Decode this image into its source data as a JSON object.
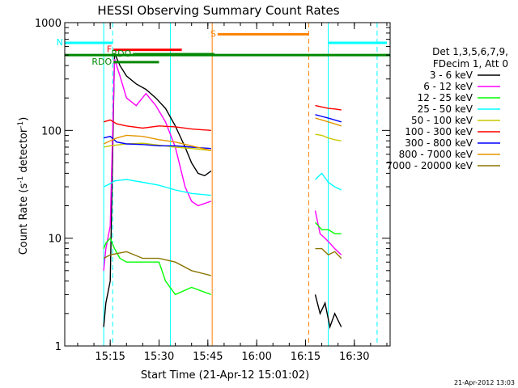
{
  "chart_data": {
    "type": "line",
    "title": "HESSI Observing Summary Count Rates",
    "xlabel": "Start Time (21-Apr-12 15:01:02)",
    "ylabel_main": "Count Rate (s",
    "ylabel_sup1": "-1",
    "ylabel_mid": " detector",
    "ylabel_sup2": "-1",
    "ylabel_end": ")",
    "ylim": [
      1,
      1000
    ],
    "yscale": "log",
    "xlim": [
      "15:01:02",
      "16:41:00"
    ],
    "x_ticks": [
      "15:15",
      "15:30",
      "15:45",
      "16:00",
      "16:15",
      "16:30"
    ],
    "y_ticks": [
      "1",
      "10",
      "100",
      "1000"
    ],
    "legend": {
      "placement": "right",
      "header1": "Det 1,3,5,6,7,9,",
      "header2": "FDecim 1, Att 0"
    },
    "series": [
      {
        "name": "3 - 6 keV",
        "color": "#000000",
        "x": [
          "15:13:00",
          "15:13:40",
          "15:15:00",
          "15:16:20",
          "15:18:00",
          "15:20:00",
          "15:23:00",
          "15:26:00",
          "15:29:00",
          "15:32:00",
          "15:35:00",
          "15:38:00",
          "15:40:00",
          "15:42:00",
          "15:44:00",
          "15:46:00",
          "16:18:00",
          "16:19:30",
          "16:21:00",
          "16:22:30",
          "16:24:00",
          "16:26:00"
        ],
        "y": [
          1.5,
          2.5,
          4,
          520,
          400,
          320,
          270,
          240,
          200,
          160,
          110,
          70,
          50,
          40,
          38,
          42,
          3,
          2,
          2.5,
          1.5,
          2,
          1.5
        ]
      },
      {
        "name": "6 - 12 keV",
        "color": "#ff00ff",
        "x": [
          "15:13:00",
          "15:13:40",
          "15:15:00",
          "15:16:20",
          "15:18:00",
          "15:20:00",
          "15:23:00",
          "15:26:00",
          "15:29:00",
          "15:32:00",
          "15:35:00",
          "15:38:00",
          "15:40:00",
          "15:42:00",
          "15:44:00",
          "15:46:00",
          "16:18:00",
          "16:19:30",
          "16:21:00",
          "16:22:30",
          "16:24:00",
          "16:26:00"
        ],
        "y": [
          5,
          8,
          13,
          460,
          320,
          200,
          170,
          220,
          170,
          120,
          70,
          30,
          22,
          20,
          21,
          22,
          18,
          11,
          10,
          9,
          8,
          7
        ]
      },
      {
        "name": "12 - 25 keV",
        "color": "#00ff00",
        "x": [
          "15:13:00",
          "15:13:40",
          "15:15:00",
          "15:16:20",
          "15:18:00",
          "15:20:00",
          "15:25:00",
          "15:30:00",
          "15:32:00",
          "15:35:00",
          "15:40:00",
          "15:46:00",
          "16:18:00",
          "16:20:00",
          "16:22:00",
          "16:24:00",
          "16:26:00"
        ],
        "y": [
          8,
          9,
          10,
          8,
          6.5,
          6,
          6,
          6,
          4,
          3,
          3.5,
          3,
          14,
          12,
          12,
          11,
          11
        ]
      },
      {
        "name": "25 - 50 keV",
        "color": "#00ffff",
        "x": [
          "15:13:00",
          "15:15:00",
          "15:16:20",
          "15:20:00",
          "15:25:00",
          "15:30:00",
          "15:35:00",
          "15:40:00",
          "15:46:00",
          "16:18:00",
          "16:20:00",
          "16:22:00",
          "16:24:00",
          "16:26:00"
        ],
        "y": [
          30,
          32,
          34,
          35,
          33,
          31,
          28,
          26,
          25,
          35,
          40,
          33,
          30,
          28
        ]
      },
      {
        "name": "50 - 100 keV",
        "color": "#c8c800",
        "x": [
          "15:13:00",
          "15:15:00",
          "15:20:00",
          "15:25:00",
          "15:30:00",
          "15:35:00",
          "15:40:00",
          "15:46:00",
          "16:18:00",
          "16:20:00",
          "16:22:00",
          "16:24:00",
          "16:26:00"
        ],
        "y": [
          70,
          72,
          75,
          76,
          73,
          70,
          68,
          65,
          92,
          90,
          85,
          82,
          80
        ]
      },
      {
        "name": "100 - 300 keV",
        "color": "#ff0000",
        "x": [
          "15:13:00",
          "15:15:00",
          "15:17:00",
          "15:20:00",
          "15:25:00",
          "15:30:00",
          "15:35:00",
          "15:40:00",
          "15:46:00",
          "16:18:00",
          "16:20:00",
          "16:22:00",
          "16:24:00",
          "16:26:00"
        ],
        "y": [
          120,
          125,
          115,
          110,
          105,
          110,
          108,
          103,
          100,
          170,
          165,
          160,
          158,
          155
        ]
      },
      {
        "name": "300 - 800 keV",
        "color": "#0000ff",
        "x": [
          "15:13:00",
          "15:15:00",
          "15:17:00",
          "15:20:00",
          "15:25:00",
          "15:30:00",
          "15:35:00",
          "15:40:00",
          "15:46:00",
          "16:18:00",
          "16:20:00",
          "16:22:00",
          "16:24:00",
          "16:26:00"
        ],
        "y": [
          85,
          88,
          78,
          75,
          74,
          72,
          72,
          70,
          68,
          140,
          135,
          130,
          125,
          120
        ]
      },
      {
        "name": "800 - 7000 keV",
        "color": "#e69600",
        "x": [
          "15:13:00",
          "15:15:00",
          "15:17:00",
          "15:20:00",
          "15:25:00",
          "15:30:00",
          "15:35:00",
          "15:40:00",
          "15:46:00",
          "16:18:00",
          "16:20:00",
          "16:22:00",
          "16:24:00",
          "16:26:00"
        ],
        "y": [
          75,
          80,
          85,
          90,
          88,
          82,
          78,
          72,
          65,
          130,
          125,
          120,
          115,
          110
        ]
      },
      {
        "name": "7000 - 20000 keV",
        "color": "#8b7500",
        "x": [
          "15:13:00",
          "15:15:00",
          "15:20:00",
          "15:25:00",
          "15:30:00",
          "15:35:00",
          "15:40:00",
          "15:46:00",
          "16:18:00",
          "16:20:00",
          "16:22:00",
          "16:24:00",
          "16:26:00"
        ],
        "y": [
          6.5,
          7,
          7.5,
          6.5,
          6.5,
          6,
          5,
          4.5,
          8,
          8,
          7,
          7.5,
          6.5
        ]
      }
    ],
    "annotations": [
      {
        "label": "N",
        "color": "#00ffff",
        "x_start": "15:01:00",
        "x_end": "15:15:45",
        "level": 650
      },
      {
        "label": "",
        "color": "#00ffff",
        "x_start": "16:22:00",
        "x_end": "16:40:00",
        "level": 650
      },
      {
        "label": "S",
        "color": "#ff8000",
        "x_start": "15:48:00",
        "x_end": "16:16:00",
        "level": 780
      },
      {
        "label": "F",
        "color": "#ff0000",
        "x_start": "15:16:00",
        "x_end": "15:37:00",
        "level": 560
      },
      {
        "label": "RDO",
        "color": "#008800",
        "x_start": "15:22:00",
        "x_end": "15:47:00",
        "level": 510
      },
      {
        "label": "RDO",
        "color": "#008800",
        "x_start": "15:16:00",
        "x_end": "15:30:00",
        "level": 430
      }
    ],
    "saa_green_level": 500,
    "vlines": [
      {
        "x": "15:01:02",
        "color": "#00ffff",
        "style": "solid"
      },
      {
        "x": "15:13:00",
        "color": "#00ffff",
        "style": "solid"
      },
      {
        "x": "15:15:45",
        "color": "#00ffff",
        "style": "dash"
      },
      {
        "x": "15:33:30",
        "color": "#00ffff",
        "style": "solid"
      },
      {
        "x": "15:46:20",
        "color": "#ff8000",
        "style": "solid"
      },
      {
        "x": "16:16:00",
        "color": "#ff8000",
        "style": "dash"
      },
      {
        "x": "16:22:00",
        "color": "#00ffff",
        "style": "solid"
      },
      {
        "x": "16:37:00",
        "color": "#00ffff",
        "style": "dash"
      }
    ],
    "timestamp": "21-Apr-2012 13:03"
  }
}
